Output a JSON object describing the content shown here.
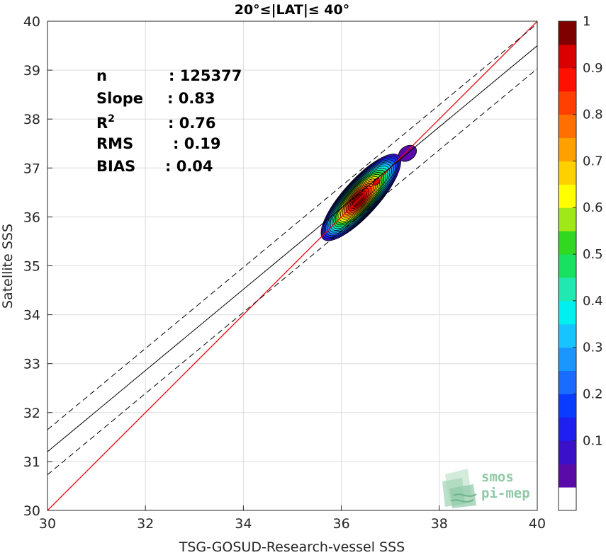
{
  "chart_data": {
    "type": "scatter",
    "title": "20°≤|LAT|≤ 40°",
    "xlabel": "TSG-GOSUD-Research-vessel SSS",
    "ylabel": "Satellite SSS",
    "xlim": [
      30,
      40
    ],
    "ylim": [
      30,
      40
    ],
    "xticks": [
      30,
      32,
      34,
      36,
      38,
      40
    ],
    "yticks": [
      30,
      31,
      32,
      33,
      34,
      35,
      36,
      37,
      38,
      39,
      40
    ],
    "grid": true,
    "stats": [
      {
        "label": "n",
        "sep": ":",
        "value": "125377"
      },
      {
        "label": "Slope",
        "sep": ":",
        "value": "0.83"
      },
      {
        "label": "R",
        "sup": "2",
        "sep": ":",
        "value": "0.76"
      },
      {
        "label": "RMS",
        "sep": ":",
        "value": "0.19"
      },
      {
        "label": "BIAS",
        "sep": ":",
        "value": "0.04"
      }
    ],
    "lines": {
      "identity": {
        "color": "#e8000b",
        "x": [
          30,
          40
        ],
        "y": [
          30,
          40
        ]
      },
      "regression": {
        "color": "#000000",
        "slope": 0.83,
        "intercept": 6.3,
        "dash": false
      },
      "regression_upper": {
        "color": "#000000",
        "slope": 0.83,
        "intercept": 6.75,
        "dash": true
      },
      "regression_lower": {
        "color": "#000000",
        "slope": 0.83,
        "intercept": 5.83,
        "dash": true
      }
    },
    "density_contours": {
      "center": [
        36.35,
        36.35
      ],
      "levels": [
        0.05,
        0.1,
        0.15,
        0.2,
        0.25,
        0.3,
        0.35,
        0.4,
        0.45,
        0.5,
        0.55,
        0.6,
        0.65,
        0.7,
        0.75,
        0.8,
        0.85,
        0.9,
        0.95
      ],
      "peak": 0.97
    },
    "colorbar": {
      "ticks": [
        0.1,
        0.2,
        0.3,
        0.4,
        0.5,
        0.6,
        0.7,
        0.8,
        0.9,
        1
      ],
      "tick_labels": [
        "0.1",
        "0.2",
        "0.3",
        "0.4",
        "0.5",
        "0.6",
        "0.7",
        "0.8",
        "0.9",
        "1"
      ],
      "colors": [
        "#ffffff",
        "#5a0aa8",
        "#3a10c8",
        "#1f1ff0",
        "#0a3cff",
        "#1a6bff",
        "#1a97ff",
        "#18c4ff",
        "#00f0f0",
        "#20e8b0",
        "#18e060",
        "#30d820",
        "#a0e818",
        "#ffff00",
        "#ffd000",
        "#ffa000",
        "#ff7000",
        "#ff4000",
        "#ff1000",
        "#d80000",
        "#800000"
      ]
    },
    "logo": {
      "line1": "smos",
      "line2": "pi-mep"
    }
  }
}
